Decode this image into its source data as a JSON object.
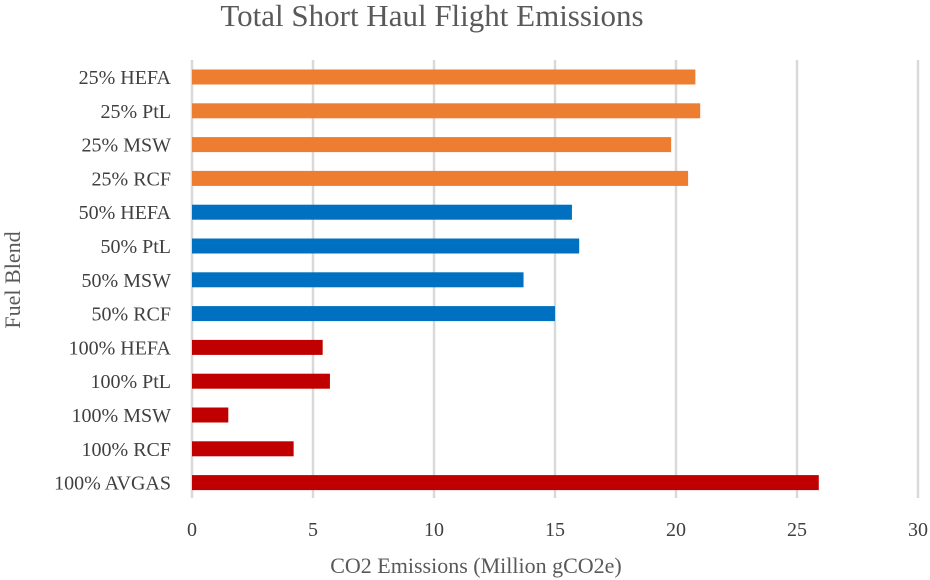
{
  "chart_data": {
    "type": "bar",
    "orientation": "horizontal",
    "title": "Total Short Haul Flight Emissions",
    "xlabel": "CO2 Emissions (Million gCO2e)",
    "ylabel": "Fuel Blend",
    "xlim": [
      0,
      30
    ],
    "xticks": [
      "0",
      "5",
      "10",
      "15",
      "20",
      "25",
      "30"
    ],
    "grid": "vertical",
    "legend": "none",
    "categories": [
      "25% HEFA",
      "25% PtL",
      "25% MSW",
      "25% RCF",
      "50% HEFA",
      "50% PtL",
      "50% MSW",
      "50% RCF",
      "100% HEFA",
      "100% PtL",
      "100% MSW",
      "100% RCF",
      "100% AVGAS"
    ],
    "values": [
      20.8,
      21.0,
      19.8,
      20.5,
      15.7,
      16.0,
      13.7,
      15.0,
      5.4,
      5.7,
      1.5,
      4.2,
      25.9
    ],
    "colors": [
      "#ED7D31",
      "#ED7D31",
      "#ED7D31",
      "#ED7D31",
      "#0070C0",
      "#0070C0",
      "#0070C0",
      "#0070C0",
      "#C00000",
      "#C00000",
      "#C00000",
      "#C00000",
      "#C00000"
    ],
    "gridline_color": "#D9D9D9"
  }
}
